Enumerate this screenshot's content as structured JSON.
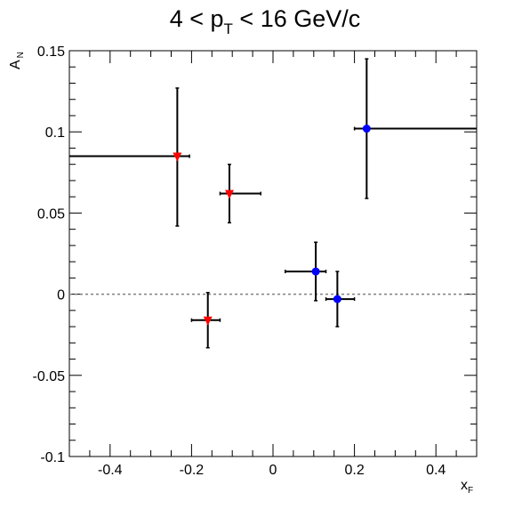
{
  "chart_data": {
    "type": "scatter",
    "title": {
      "base": "4 < p",
      "sub": "T",
      "rest": " < 16 GeV/c"
    },
    "xlabel": {
      "base": "x",
      "sub": "F"
    },
    "ylabel": {
      "base": "A",
      "sub": "N"
    },
    "xlim": [
      -0.5,
      0.5
    ],
    "ylim": [
      -0.1,
      0.15
    ],
    "x_ticks": [
      {
        "value": -0.4,
        "label": "-0.4"
      },
      {
        "value": -0.2,
        "label": "-0.2"
      },
      {
        "value": 0.0,
        "label": "0"
      },
      {
        "value": 0.2,
        "label": "0.2"
      },
      {
        "value": 0.4,
        "label": "0.4"
      }
    ],
    "y_ticks": [
      {
        "value": -0.1,
        "label": "-0.1"
      },
      {
        "value": -0.05,
        "label": "-0.05"
      },
      {
        "value": 0.0,
        "label": "0"
      },
      {
        "value": 0.05,
        "label": "0.05"
      },
      {
        "value": 0.1,
        "label": "0.1"
      },
      {
        "value": 0.15,
        "label": "0.15"
      }
    ],
    "reference_line": {
      "y": 0,
      "style": "dashed",
      "color": "#808080"
    },
    "grid": false,
    "series": [
      {
        "marker": "triangle-down",
        "color": "#ff0000",
        "points": [
          {
            "x": -0.235,
            "y": 0.085,
            "xerr_lo": 0.27,
            "xerr_hi": 0.03,
            "yerr_lo": 0.043,
            "yerr_hi": 0.042
          },
          {
            "x": -0.107,
            "y": 0.062,
            "xerr_lo": 0.023,
            "xerr_hi": 0.077,
            "yerr_lo": 0.018,
            "yerr_hi": 0.018
          },
          {
            "x": -0.16,
            "y": -0.016,
            "xerr_lo": 0.04,
            "xerr_hi": 0.03,
            "yerr_lo": 0.017,
            "yerr_hi": 0.017
          }
        ]
      },
      {
        "marker": "circle",
        "color": "#0000ff",
        "points": [
          {
            "x": 0.23,
            "y": 0.102,
            "xerr_lo": 0.03,
            "xerr_hi": 0.27,
            "yerr_lo": 0.043,
            "yerr_hi": 0.043
          },
          {
            "x": 0.105,
            "y": 0.014,
            "xerr_lo": 0.075,
            "xerr_hi": 0.025,
            "yerr_lo": 0.018,
            "yerr_hi": 0.018
          },
          {
            "x": 0.158,
            "y": -0.003,
            "xerr_lo": 0.028,
            "xerr_hi": 0.042,
            "yerr_lo": 0.017,
            "yerr_hi": 0.017
          }
        ]
      }
    ]
  }
}
